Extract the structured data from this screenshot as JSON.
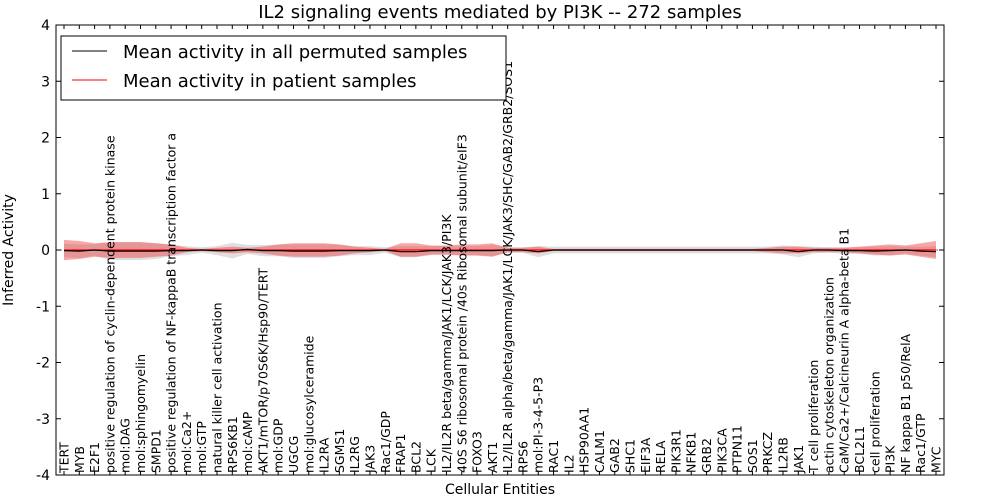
{
  "chart_data": {
    "type": "line",
    "title": "IL2 signaling events mediated by PI3K -- 272 samples",
    "xlabel": "Cellular Entities",
    "ylabel": "Inferred Activity",
    "ylim": [
      -4,
      4
    ],
    "yticks": [
      "-4",
      "-3",
      "-2",
      "-1",
      "0",
      "1",
      "2",
      "3",
      "4"
    ],
    "legend_position": "upper-left",
    "categories": [
      "TERT",
      "MYB",
      "E2F1",
      "positive regulation of cyclin-dependent protein kinase",
      "mol:DAG",
      "mol:sphingomyelin",
      "SMPD1",
      "positive regulation of NF-kappaB transcription factor a",
      "mol:Ca2+",
      "mol:GTP",
      "natural killer cell activation",
      "RPS6KB1",
      "mol:cAMP",
      "AKT1/mTOR/p70S6K/Hsp90/TERT",
      "mol:GDP",
      "UGCG",
      "mol:glucosylceramide",
      "IL2RA",
      "SGMS1",
      "IL2RG",
      "JAK3",
      "Rac1/GDP",
      "FRAP1",
      "BCL2",
      "LCK",
      "IL2/IL2R beta/gamma/JAK1/LCK/JAK3/PI3K",
      "40S S6 ribosomal protein /40s Ribosomal subunit/eIF3",
      "FOXO3",
      "AKT1",
      "IL2/IL2R alpha/beta/gamma/JAK1/LCK/JAK3/SHC/GAB2/GRB2/SOS1",
      "RPS6",
      "mol:PI-3-4-5-P3",
      "RAC1",
      "IL2",
      "HSP90AA1",
      "CALM1",
      "GAB2",
      "SHC1",
      "EIF3A",
      "RELA",
      "PIK3R1",
      "NFKB1",
      "GRB2",
      "PIK3CA",
      "PTPN11",
      "SOS1",
      "PRKCZ",
      "IL2RB",
      "JAK1",
      "T cell proliferation",
      "actin cytoskeleton organization",
      "CaM/Ca2+/Calcineurin A alpha-beta B1",
      "BCL2L1",
      "cell proliferation",
      "PI3K",
      "NF kappa B1 p50/RelA",
      "Rac1/GTP",
      "MYC"
    ],
    "series": [
      {
        "name": "Mean activity in all permuted samples",
        "color": "#000000",
        "values": [
          -0.01,
          -0.02,
          0.0,
          -0.02,
          -0.02,
          -0.02,
          -0.02,
          -0.01,
          -0.01,
          0.0,
          -0.01,
          -0.01,
          0.01,
          -0.01,
          -0.01,
          -0.02,
          -0.02,
          -0.02,
          -0.01,
          -0.01,
          -0.01,
          0.0,
          -0.03,
          -0.03,
          -0.01,
          -0.01,
          -0.01,
          -0.01,
          -0.01,
          0.0,
          0.0,
          -0.03,
          0.0,
          0.0,
          0.0,
          0.0,
          0.0,
          0.0,
          0.0,
          0.0,
          0.0,
          0.0,
          0.0,
          0.0,
          0.0,
          0.0,
          0.0,
          0.0,
          -0.03,
          0.0,
          0.0,
          -0.01,
          -0.01,
          -0.02,
          -0.01,
          0.0,
          -0.02,
          -0.03
        ],
        "band": [
          0.12,
          0.12,
          0.1,
          0.16,
          0.16,
          0.16,
          0.14,
          0.1,
          0.08,
          0.05,
          0.08,
          0.14,
          0.08,
          0.1,
          0.1,
          0.12,
          0.12,
          0.12,
          0.1,
          0.08,
          0.08,
          0.05,
          0.1,
          0.1,
          0.08,
          0.08,
          0.08,
          0.08,
          0.1,
          0.05,
          0.05,
          0.1,
          0.06,
          0.06,
          0.06,
          0.06,
          0.06,
          0.06,
          0.06,
          0.06,
          0.06,
          0.06,
          0.06,
          0.06,
          0.06,
          0.06,
          0.06,
          0.08,
          0.1,
          0.06,
          0.05,
          0.06,
          0.06,
          0.08,
          0.08,
          0.06,
          0.08,
          0.1
        ]
      },
      {
        "name": "Mean activity in patient samples",
        "color": "#ff0000",
        "values": [
          0.0,
          0.0,
          0.0,
          0.0,
          0.0,
          0.0,
          0.0,
          0.0,
          0.0,
          0.0,
          0.0,
          0.0,
          0.0,
          0.0,
          0.0,
          0.0,
          0.0,
          0.0,
          0.0,
          0.0,
          0.0,
          0.0,
          0.0,
          0.0,
          0.0,
          0.0,
          0.0,
          0.0,
          0.0,
          0.0,
          0.0,
          0.0,
          0.0,
          0.0,
          0.0,
          0.0,
          0.0,
          0.0,
          0.0,
          0.0,
          0.0,
          0.0,
          0.0,
          0.0,
          0.0,
          0.0,
          0.0,
          0.0,
          0.0,
          0.0,
          0.0,
          0.0,
          0.0,
          0.0,
          0.0,
          0.0,
          0.0,
          0.0
        ],
        "band": [
          0.18,
          0.16,
          0.12,
          0.14,
          0.14,
          0.14,
          0.12,
          0.1,
          0.04,
          0.02,
          0.04,
          0.06,
          0.04,
          0.06,
          0.1,
          0.12,
          0.12,
          0.12,
          0.1,
          0.06,
          0.04,
          0.02,
          0.12,
          0.12,
          0.08,
          0.08,
          0.1,
          0.1,
          0.12,
          0.04,
          0.04,
          0.06,
          0.02,
          0.02,
          0.02,
          0.02,
          0.02,
          0.02,
          0.02,
          0.02,
          0.02,
          0.02,
          0.02,
          0.02,
          0.02,
          0.02,
          0.04,
          0.06,
          0.06,
          0.04,
          0.04,
          0.04,
          0.06,
          0.08,
          0.1,
          0.08,
          0.12,
          0.16
        ]
      }
    ]
  }
}
